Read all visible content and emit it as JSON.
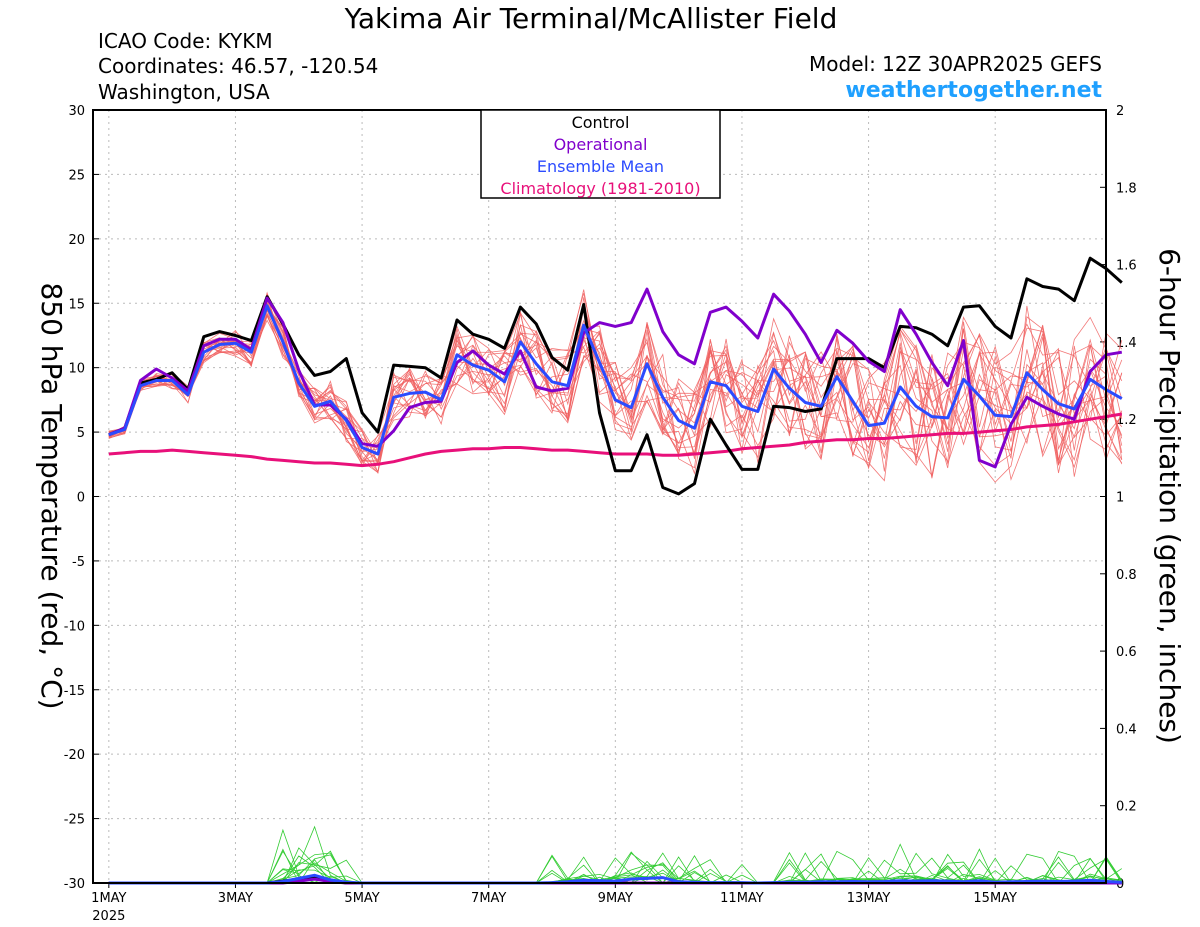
{
  "header": {
    "title": "Yakima Air Terminal/McAllister Field",
    "icao": "ICAO Code: KYKM",
    "coords": "Coordinates: 46.57, -120.54",
    "region": "Washington, USA",
    "model": "Model: 12Z 30APR2025 GEFS",
    "site": "weathertogether.net"
  },
  "chart_data": {
    "type": "line",
    "title": "Yakima Air Terminal/McAllister Field",
    "ylabel": "850 hPa Temperature (red, °C)",
    "y2label": "6-hour Precipitation (green, inches)",
    "ylim": [
      -30,
      30
    ],
    "y2lim": [
      0,
      2
    ],
    "yticks": [
      30,
      25,
      20,
      15,
      10,
      5,
      0,
      -5,
      -10,
      -15,
      -20,
      -25,
      -30
    ],
    "y2ticks": [
      2,
      1.8,
      1.6,
      1.4,
      1.2,
      1,
      0.8,
      0.6,
      0.4,
      0.2,
      0
    ],
    "x_unit": "days since 00Z 1MAY2025",
    "xlim": [
      -0.25,
      15.75
    ],
    "xticks": [
      {
        "x": 0,
        "label": "1MAY",
        "sub": "2025"
      },
      {
        "x": 2,
        "label": "3MAY"
      },
      {
        "x": 4,
        "label": "5MAY"
      },
      {
        "x": 6,
        "label": "7MAY"
      },
      {
        "x": 8,
        "label": "9MAY"
      },
      {
        "x": 10,
        "label": "11MAY"
      },
      {
        "x": 12,
        "label": "13MAY"
      },
      {
        "x": 14,
        "label": "15MAY"
      }
    ],
    "grid": true,
    "legend_position": "top-center",
    "legend": [
      {
        "label": "Control",
        "color": "#000000"
      },
      {
        "label": "Operational",
        "color": "#8000cc"
      },
      {
        "label": "Ensemble Mean",
        "color": "#2b4bff"
      },
      {
        "label": "Climatology (1981-2010)",
        "color": "#e8107a"
      }
    ],
    "colors": {
      "members": "#f06060",
      "precip_members": "#33cc33",
      "control": "#000000",
      "operational": "#8000cc",
      "mean": "#2b4bff",
      "climatology": "#e8107a",
      "grid": "#bbbbbb"
    },
    "step_days": 0.25,
    "series": [
      {
        "name": "Control",
        "values": [
          4.8,
          5.3,
          8.8,
          9.1,
          9.6,
          8.3,
          12.4,
          12.8,
          12.5,
          12.1,
          15.5,
          13.4,
          11.0,
          9.4,
          9.7,
          10.7,
          6.5,
          5.0,
          10.2,
          10.1,
          10.0,
          9.2,
          13.7,
          12.6,
          12.2,
          11.5,
          14.7,
          13.4,
          10.8,
          9.8,
          14.9,
          6.5,
          2.0,
          2.0,
          4.8,
          0.7,
          0.2,
          1.0,
          6.0,
          4.0,
          2.1,
          2.1,
          7.0,
          6.9,
          6.6,
          6.8,
          10.7,
          10.7,
          10.7,
          10.0,
          13.2,
          13.1,
          12.6,
          11.7,
          14.7,
          14.8,
          13.2,
          12.3,
          16.9,
          16.3,
          16.1,
          15.2,
          18.5,
          17.7,
          16.6
        ]
      },
      {
        "name": "Operational",
        "values": [
          4.8,
          5.3,
          9.0,
          9.9,
          9.2,
          8.2,
          11.7,
          12.2,
          12.2,
          11.4,
          15.4,
          13.5,
          9.8,
          7.1,
          7.1,
          6.0,
          4.1,
          3.9,
          5.1,
          6.9,
          7.3,
          7.4,
          10.4,
          11.3,
          10.2,
          9.5,
          11.3,
          8.5,
          8.2,
          8.4,
          12.7,
          13.5,
          13.2,
          13.5,
          16.1,
          12.8,
          11.0,
          10.3,
          14.3,
          14.7,
          13.6,
          12.3,
          15.7,
          14.4,
          12.6,
          10.4,
          12.9,
          11.9,
          10.5,
          9.7,
          14.5,
          12.6,
          10.4,
          8.6,
          12.1,
          2.8,
          2.3,
          5.6,
          7.7,
          7.0,
          6.4,
          6.0,
          9.7,
          11.0,
          11.2
        ]
      },
      {
        "name": "Ensemble Mean",
        "values": [
          4.8,
          5.2,
          8.6,
          9.0,
          9.0,
          7.9,
          11.2,
          11.8,
          11.9,
          11.2,
          14.8,
          12.0,
          8.8,
          7.0,
          7.4,
          5.9,
          3.8,
          3.3,
          7.7,
          8.0,
          8.1,
          7.5,
          11.0,
          10.2,
          9.8,
          8.9,
          12.0,
          10.3,
          8.9,
          8.6,
          13.3,
          10.4,
          7.5,
          6.9,
          10.3,
          7.7,
          5.9,
          5.3,
          8.9,
          8.6,
          7.0,
          6.6,
          9.9,
          8.4,
          7.3,
          7.0,
          9.3,
          7.4,
          5.5,
          5.7,
          8.5,
          7.0,
          6.2,
          6.1,
          9.1,
          7.8,
          6.3,
          6.2,
          9.6,
          8.3,
          7.2,
          6.8,
          9.1,
          8.3,
          7.6
        ]
      },
      {
        "name": "Climatology (1981-2010)",
        "values": [
          3.3,
          3.4,
          3.5,
          3.5,
          3.6,
          3.5,
          3.4,
          3.3,
          3.2,
          3.1,
          2.9,
          2.8,
          2.7,
          2.6,
          2.6,
          2.5,
          2.4,
          2.5,
          2.7,
          3.0,
          3.3,
          3.5,
          3.6,
          3.7,
          3.7,
          3.8,
          3.8,
          3.7,
          3.6,
          3.6,
          3.5,
          3.4,
          3.3,
          3.3,
          3.3,
          3.2,
          3.2,
          3.3,
          3.4,
          3.5,
          3.7,
          3.8,
          3.9,
          4.0,
          4.2,
          4.3,
          4.4,
          4.4,
          4.5,
          4.5,
          4.6,
          4.7,
          4.8,
          4.9,
          4.9,
          5.0,
          5.1,
          5.2,
          5.4,
          5.5,
          5.6,
          5.8,
          6.0,
          6.2,
          6.4
        ]
      }
    ],
    "precip_series": [
      {
        "name": "Control",
        "values": [
          0,
          0,
          0,
          0,
          0,
          0,
          0,
          0,
          0,
          0,
          0,
          0.005,
          0.01,
          0.015,
          0.007,
          0,
          0,
          0,
          0,
          0,
          0,
          0,
          0,
          0,
          0,
          0,
          0,
          0,
          0,
          0,
          0,
          0,
          0,
          0,
          0,
          0,
          0,
          0,
          0,
          0,
          0,
          0,
          0,
          0,
          0,
          0,
          0,
          0,
          0,
          0,
          0,
          0,
          0,
          0,
          0,
          0,
          0,
          0,
          0,
          0,
          0,
          0,
          0,
          0,
          0
        ]
      },
      {
        "name": "Operational",
        "values": [
          0,
          0,
          0,
          0,
          0,
          0,
          0,
          0,
          0,
          0,
          0,
          0,
          0.005,
          0.01,
          0.004,
          0,
          0,
          0,
          0,
          0,
          0,
          0,
          0,
          0,
          0,
          0,
          0,
          0,
          0,
          0,
          0,
          0,
          0,
          0,
          0,
          0,
          0,
          0,
          0,
          0,
          0,
          0,
          0,
          0,
          0,
          0,
          0,
          0,
          0,
          0,
          0,
          0,
          0,
          0,
          0,
          0,
          0,
          0,
          0,
          0,
          0,
          0,
          0,
          0,
          0
        ]
      },
      {
        "name": "Ensemble Mean",
        "values": [
          0,
          0,
          0,
          0,
          0,
          0,
          0,
          0,
          0,
          0,
          0,
          0.004,
          0.012,
          0.02,
          0.008,
          0.002,
          0,
          0,
          0,
          0,
          0,
          0,
          0,
          0,
          0,
          0,
          0,
          0,
          0.001,
          0.003,
          0.007,
          0.006,
          0.005,
          0.01,
          0.012,
          0.014,
          0.003,
          0.002,
          0.001,
          0.001,
          0.001,
          0,
          0.001,
          0.002,
          0.002,
          0.003,
          0.003,
          0.004,
          0.003,
          0.004,
          0.006,
          0.005,
          0.006,
          0.005,
          0.003,
          0.006,
          0.002,
          0.003,
          0.004,
          0.005,
          0.004,
          0.005,
          0.007,
          0.004,
          0.002
        ]
      }
    ]
  }
}
